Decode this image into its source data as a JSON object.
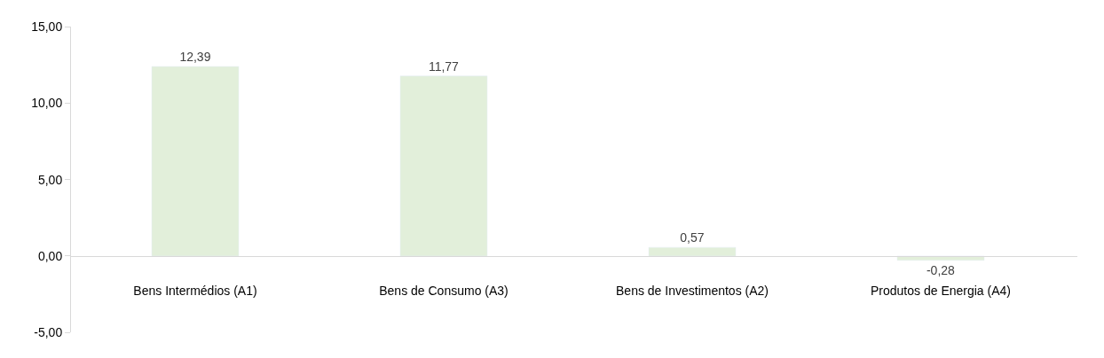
{
  "chart_data": {
    "type": "bar",
    "categories": [
      "Bens Intermédios (A1)",
      "Bens de Consumo (A3)",
      "Bens de Investimentos (A2)",
      "Produtos de Energia (A4)"
    ],
    "values": [
      12.39,
      11.77,
      0.57,
      -0.28
    ],
    "value_labels": [
      "12,39",
      "11,77",
      "0,57",
      "-0,28"
    ],
    "color": "#e2efda",
    "ylim": [
      -5,
      15
    ],
    "yticks": [
      {
        "value": -5,
        "label": "-5,00"
      },
      {
        "value": 0,
        "label": "0,00"
      },
      {
        "value": 5,
        "label": "5,00"
      },
      {
        "value": 10,
        "label": "10,00"
      },
      {
        "value": 15,
        "label": "15,00"
      }
    ],
    "grid": false,
    "legend": false
  }
}
